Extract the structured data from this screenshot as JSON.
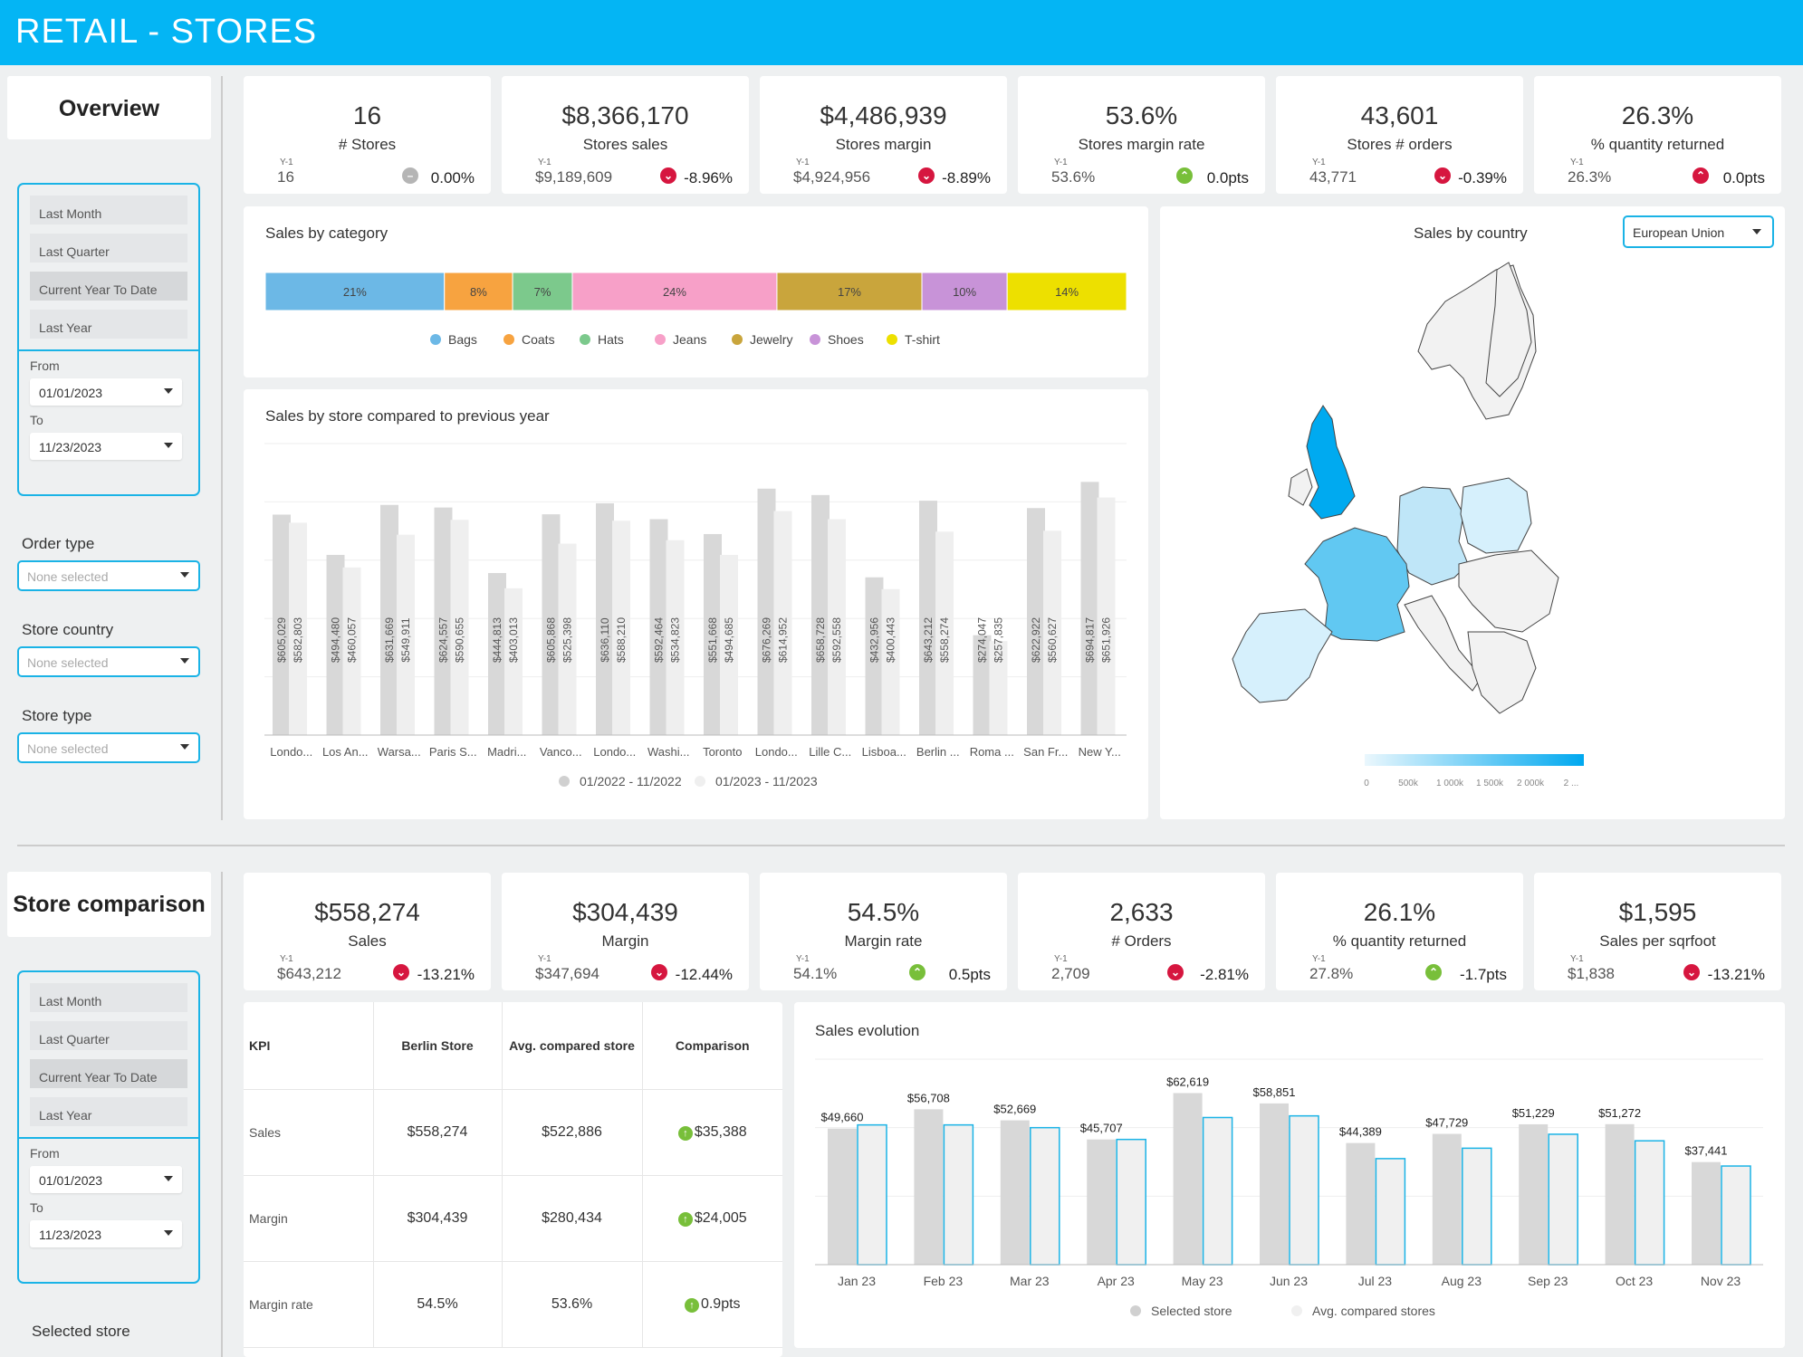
{
  "header": {
    "title": "RETAIL - STORES"
  },
  "overview": {
    "title": "Overview",
    "filters": {
      "quick": [
        "Last Month",
        "Last Quarter",
        "Current Year To Date",
        "Last Year"
      ],
      "from_label": "From",
      "from": "01/01/2023",
      "to_label": "To",
      "to": "11/23/2023"
    },
    "selects": [
      {
        "label": "Order type",
        "value": "None selected"
      },
      {
        "label": "Store country",
        "value": "None selected"
      },
      {
        "label": "Store type",
        "value": "None selected"
      }
    ],
    "kpis": [
      {
        "value": "16",
        "label": "# Stores",
        "y1_label": "Y-1",
        "y1": "16",
        "change": "0.00%",
        "trend": "neutral"
      },
      {
        "value": "$8,366,170",
        "label": "Stores sales",
        "y1_label": "Y-1",
        "y1": "$9,189,609",
        "change": "-8.96%",
        "trend": "down"
      },
      {
        "value": "$4,486,939",
        "label": "Stores margin",
        "y1_label": "Y-1",
        "y1": "$4,924,956",
        "change": "-8.89%",
        "trend": "down"
      },
      {
        "value": "53.6%",
        "label": "Stores margin rate",
        "y1_label": "Y-1",
        "y1": "53.6%",
        "change": "0.0pts",
        "trend": "up"
      },
      {
        "value": "43,601",
        "label": "Stores # orders",
        "y1_label": "Y-1",
        "y1": "43,771",
        "change": "-0.39%",
        "trend": "down"
      },
      {
        "value": "26.3%",
        "label": "% quantity returned",
        "y1_label": "Y-1",
        "y1": "26.3%",
        "change": "0.0pts",
        "trend": "up-bad"
      }
    ],
    "sales_by_category": {
      "title": "Sales by category"
    },
    "sales_by_store": {
      "title": "Sales by store compared to previous year"
    },
    "sales_by_country": {
      "title": "Sales by country",
      "region": "European Union",
      "scale_ticks": [
        "0",
        "500k",
        "1 000k",
        "1 500k",
        "2 000k",
        "2 ..."
      ]
    }
  },
  "comparison": {
    "title": "Store comparison",
    "filters": {
      "quick": [
        "Last Month",
        "Last Quarter",
        "Current Year To Date",
        "Last Year"
      ],
      "from_label": "From",
      "from": "01/01/2023",
      "to_label": "To",
      "to": "11/23/2023"
    },
    "selected_store_label": "Selected store",
    "kpis": [
      {
        "value": "$558,274",
        "label": "Sales",
        "y1_label": "Y-1",
        "y1": "$643,212",
        "change": "-13.21%",
        "trend": "down"
      },
      {
        "value": "$304,439",
        "label": "Margin",
        "y1_label": "Y-1",
        "y1": "$347,694",
        "change": "-12.44%",
        "trend": "down"
      },
      {
        "value": "54.5%",
        "label": "Margin rate",
        "y1_label": "Y-1",
        "y1": "54.1%",
        "change": "0.5pts",
        "trend": "up"
      },
      {
        "value": "2,633",
        "label": "# Orders",
        "y1_label": "Y-1",
        "y1": "2,709",
        "change": "-2.81%",
        "trend": "down"
      },
      {
        "value": "26.1%",
        "label": "% quantity returned",
        "y1_label": "Y-1",
        "y1": "27.8%",
        "change": "-1.7pts",
        "trend": "up"
      },
      {
        "value": "$1,595",
        "label": "Sales per sqrfoot",
        "y1_label": "Y-1",
        "y1": "$1,838",
        "change": "-13.21%",
        "trend": "down"
      }
    ],
    "table": {
      "headers": [
        "KPI",
        "Berlin Store",
        "Avg. compared store",
        "Comparison"
      ],
      "rows": [
        [
          "Sales",
          "$558,274",
          "$522,886",
          "$35,388"
        ],
        [
          "Margin",
          "$304,439",
          "$280,434",
          "$24,005"
        ],
        [
          "Margin rate",
          "54.5%",
          "53.6%",
          "0.9pts"
        ]
      ]
    },
    "sales_evolution": {
      "title": "Sales evolution"
    }
  },
  "colors": {
    "header": "#04b5f4",
    "accent": "#1ab3e6",
    "down": "#d6163f",
    "up": "#78bf3a"
  },
  "chart_data": [
    {
      "type": "bar",
      "title": "Sales by category",
      "orientation": "stacked-100",
      "categories": [
        "Bags",
        "Coats",
        "Hats",
        "Jeans",
        "Jewelry",
        "Shoes",
        "T-shirt"
      ],
      "values": [
        21,
        8,
        7,
        24,
        17,
        10,
        14
      ],
      "labels": [
        "21%",
        "8%",
        "7%",
        "24%",
        "17%",
        "10%",
        "14%"
      ],
      "colors": [
        "#6cb8e6",
        "#f7a340",
        "#7cc98c",
        "#f7a0c8",
        "#c9a53c",
        "#c893d8",
        "#ede000"
      ],
      "legend_position": "bottom"
    },
    {
      "type": "bar",
      "title": "Sales by store compared to previous year",
      "categories": [
        "Londo...",
        "Los An...",
        "Warsa...",
        "Paris S...",
        "Madri...",
        "Vanco...",
        "Londo...",
        "Washi...",
        "Toronto",
        "Londo...",
        "Lille C...",
        "Lisboa...",
        "Berlin ...",
        "Roma ...",
        "San Fr...",
        "New Y..."
      ],
      "series": [
        {
          "name": "01/2022 - 11/2022",
          "values": [
            605029,
            494480,
            631669,
            624557,
            444813,
            605868,
            636110,
            592464,
            551668,
            676269,
            658728,
            432956,
            643212,
            274047,
            622922,
            694817
          ],
          "labels": [
            "$605,029",
            "$494,480",
            "$631,669",
            "$624,557",
            "$444,813",
            "$605,868",
            "$636,110",
            "$592,464",
            "$551,668",
            "$676,269",
            "$658,728",
            "$432,956",
            "$643,212",
            "$274,047",
            "$622,922",
            "$694,817"
          ]
        },
        {
          "name": "01/2023 - 11/2023",
          "values": [
            582803,
            460057,
            549911,
            590655,
            403013,
            525398,
            588210,
            534823,
            494685,
            614952,
            592558,
            400443,
            558274,
            257835,
            560627,
            651926
          ],
          "labels": [
            "$582,803",
            "$460,057",
            "$549,911",
            "$590,655",
            "$403,013",
            "$525,398",
            "$588,210",
            "$534,823",
            "$494,685",
            "$614,952",
            "$592,558",
            "$400,443",
            "$558,274",
            "$257,835",
            "$560,627",
            "$651,926"
          ]
        }
      ],
      "ylim": [
        0,
        800000
      ],
      "grid": true,
      "legend_position": "bottom"
    },
    {
      "type": "bar",
      "title": "Sales evolution",
      "categories": [
        "Jan 23",
        "Feb 23",
        "Mar 23",
        "Apr 23",
        "May 23",
        "Jun 23",
        "Jul 23",
        "Aug 23",
        "Sep 23",
        "Oct 23",
        "Nov 23"
      ],
      "series": [
        {
          "name": "Selected store",
          "values": [
            49660,
            56708,
            52669,
            45707,
            62619,
            58851,
            44389,
            47729,
            51229,
            51272,
            37441
          ],
          "labels": [
            "$49,660",
            "$56,708",
            "$52,669",
            "$45,707",
            "$62,619",
            "$58,851",
            "$44,389",
            "$47,729",
            "$51,229",
            "$51,272",
            "$37,441"
          ]
        },
        {
          "name": "Avg. compared stores",
          "values": [
            51000,
            51000,
            50000,
            45700,
            53700,
            54300,
            38700,
            42500,
            47600,
            45200,
            36000
          ]
        }
      ],
      "ylim": [
        0,
        75000
      ],
      "grid": true,
      "legend_position": "bottom"
    }
  ]
}
